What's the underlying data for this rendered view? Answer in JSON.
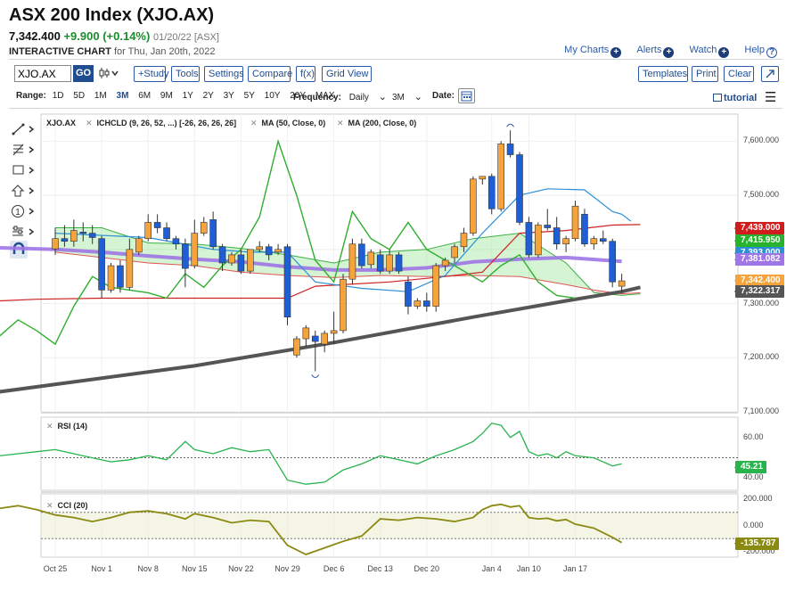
{
  "header": {
    "title": "ASX 200 Index (XJO.AX)",
    "price": "7,342.400",
    "change": "+9.900 (+0.14%)",
    "date": "01/20/22 [ASX]",
    "subtitle_bold": "INTERACTIVE CHART",
    "subtitle_rest": "for Thu, Jan 20th, 2022"
  },
  "toplinks": {
    "my_charts": "My Charts",
    "alerts": "Alerts",
    "watch": "Watch",
    "help": "Help"
  },
  "toolbar": {
    "symbol_value": "XJO.AX",
    "go": "GO",
    "study": "+Study",
    "tools": "Tools",
    "settings": "Settings",
    "compare": "Compare",
    "fx": "f(x)",
    "grid_view": "Grid View",
    "templates": "Templates",
    "print": "Print",
    "clear": "Clear"
  },
  "rangebar": {
    "label": "Range:",
    "ranges": [
      "1D",
      "5D",
      "1M",
      "3M",
      "6M",
      "9M",
      "1Y",
      "2Y",
      "3Y",
      "5Y",
      "10Y",
      "20Y",
      "MAX"
    ],
    "selected": "3M",
    "frequency_label": "Frequency:",
    "frequency_value": "Daily",
    "interval_value": "3M",
    "date_label": "Date:",
    "tutorial": "tutorial"
  },
  "legend": {
    "symbol": "XJO.AX",
    "ichimoku": "ICHCLD (9, 26, 52, ...) [-26, 26, 26, 26]",
    "ma50": "MA (50, Close, 0)",
    "ma200": "MA (200, Close, 0)"
  },
  "colors": {
    "up": "#f5a33a",
    "down": "#1f5fd6",
    "ma50": "#9f76e6",
    "ma200": "#555555",
    "tenkan": "#2b8fd8",
    "kijun": "#cc2222",
    "chikou": "#2eae2e",
    "rsi": "#27b34d",
    "cci": "#8a8a12",
    "red_tag": "#d01c1c",
    "green_tag": "#27b32e"
  },
  "chart_data": [
    {
      "type": "candlestick",
      "ylim": [
        7100,
        7650
      ],
      "yticks": [
        7100,
        7200,
        7300,
        7400,
        7500,
        7600
      ],
      "ytick_labels": [
        "7,100.000",
        "7,200.000",
        "7,300.000",
        "7,400.000",
        "7,500.000",
        "7,600.000"
      ],
      "x_labels": [
        "Oct 25",
        "Nov 1",
        "Nov 8",
        "Nov 15",
        "Nov 22",
        "Nov 29",
        "Dec 6",
        "Dec 13",
        "Dec 20",
        "Jan 4",
        "Jan 10",
        "Jan 17"
      ],
      "x_label_index": [
        0,
        5,
        10,
        15,
        20,
        25,
        30,
        35,
        40,
        47,
        51,
        56
      ],
      "ohlc": [
        [
          7401,
          7440,
          7390,
          7420
        ],
        [
          7420,
          7445,
          7405,
          7415
        ],
        [
          7415,
          7455,
          7405,
          7435
        ],
        [
          7432,
          7450,
          7415,
          7430
        ],
        [
          7430,
          7445,
          7410,
          7422
        ],
        [
          7420,
          7425,
          7310,
          7325
        ],
        [
          7325,
          7375,
          7320,
          7370
        ],
        [
          7370,
          7380,
          7320,
          7330
        ],
        [
          7330,
          7420,
          7325,
          7400
        ],
        [
          7395,
          7425,
          7390,
          7420
        ],
        [
          7420,
          7465,
          7415,
          7450
        ],
        [
          7450,
          7465,
          7430,
          7440
        ],
        [
          7440,
          7450,
          7415,
          7420
        ],
        [
          7420,
          7425,
          7400,
          7410
        ],
        [
          7410,
          7420,
          7330,
          7365
        ],
        [
          7370,
          7455,
          7365,
          7430
        ],
        [
          7430,
          7460,
          7425,
          7450
        ],
        [
          7455,
          7470,
          7400,
          7405
        ],
        [
          7405,
          7410,
          7360,
          7375
        ],
        [
          7375,
          7395,
          7370,
          7390
        ],
        [
          7390,
          7400,
          7355,
          7360
        ],
        [
          7360,
          7400,
          7355,
          7400
        ],
        [
          7400,
          7415,
          7395,
          7405
        ],
        [
          7405,
          7410,
          7380,
          7390
        ],
        [
          7395,
          7410,
          7390,
          7400
        ],
        [
          7405,
          7410,
          7260,
          7275
        ],
        [
          7205,
          7240,
          7200,
          7235
        ],
        [
          7235,
          7260,
          7220,
          7255
        ],
        [
          7240,
          7250,
          7175,
          7230
        ],
        [
          7225,
          7250,
          7210,
          7245
        ],
        [
          7245,
          7285,
          7225,
          7250
        ],
        [
          7250,
          7355,
          7245,
          7345
        ],
        [
          7345,
          7420,
          7335,
          7410
        ],
        [
          7410,
          7420,
          7365,
          7370
        ],
        [
          7372,
          7400,
          7365,
          7395
        ],
        [
          7390,
          7400,
          7355,
          7360
        ],
        [
          7360,
          7400,
          7355,
          7390
        ],
        [
          7390,
          7395,
          7355,
          7360
        ],
        [
          7340,
          7350,
          7280,
          7295
        ],
        [
          7295,
          7310,
          7290,
          7305
        ],
        [
          7305,
          7320,
          7285,
          7295
        ],
        [
          7295,
          7375,
          7285,
          7370
        ],
        [
          7370,
          7385,
          7360,
          7380
        ],
        [
          7385,
          7410,
          7375,
          7405
        ],
        [
          7405,
          7440,
          7395,
          7430
        ],
        [
          7430,
          7535,
          7425,
          7530
        ],
        [
          7530,
          7535,
          7520,
          7535
        ],
        [
          7535,
          7540,
          7465,
          7475
        ],
        [
          7475,
          7600,
          7470,
          7595
        ],
        [
          7595,
          7620,
          7570,
          7575
        ],
        [
          7575,
          7580,
          7445,
          7450
        ],
        [
          7450,
          7460,
          7385,
          7390
        ],
        [
          7390,
          7450,
          7385,
          7445
        ],
        [
          7445,
          7475,
          7435,
          7440
        ],
        [
          7440,
          7460,
          7400,
          7410
        ],
        [
          7410,
          7425,
          7395,
          7420
        ],
        [
          7420,
          7490,
          7415,
          7480
        ],
        [
          7465,
          7475,
          7405,
          7410
        ],
        [
          7410,
          7425,
          7400,
          7420
        ],
        [
          7420,
          7435,
          7410,
          7415
        ],
        [
          7415,
          7420,
          7330,
          7340
        ],
        [
          7332,
          7355,
          7320,
          7342
        ]
      ],
      "ma50": [
        [
          -6,
          7403
        ],
        [
          0,
          7400
        ],
        [
          5,
          7395
        ],
        [
          10,
          7388
        ],
        [
          15,
          7382
        ],
        [
          20,
          7377
        ],
        [
          25,
          7368
        ],
        [
          30,
          7362
        ],
        [
          35,
          7362
        ],
        [
          40,
          7366
        ],
        [
          45,
          7377
        ],
        [
          50,
          7382
        ],
        [
          55,
          7385
        ],
        [
          61,
          7378
        ]
      ],
      "ma200": [
        [
          -6,
          7137
        ],
        [
          15,
          7185
        ],
        [
          30,
          7228
        ],
        [
          45,
          7275
        ],
        [
          55,
          7305
        ],
        [
          61,
          7322
        ],
        [
          63,
          7330
        ]
      ],
      "tenkan": [
        [
          0,
          7430
        ],
        [
          10,
          7422
        ],
        [
          17,
          7400
        ],
        [
          21,
          7395
        ],
        [
          25,
          7395
        ],
        [
          28,
          7340
        ],
        [
          33,
          7328
        ],
        [
          38,
          7322
        ],
        [
          42,
          7352
        ],
        [
          46,
          7430
        ],
        [
          50,
          7500
        ],
        [
          53,
          7512
        ],
        [
          57,
          7510
        ],
        [
          60,
          7470
        ],
        [
          61,
          7465
        ],
        [
          62,
          7452
        ]
      ],
      "kijun": [
        [
          -6,
          7305
        ],
        [
          -2,
          7308
        ],
        [
          5,
          7310
        ],
        [
          15,
          7310
        ],
        [
          25,
          7310
        ],
        [
          28,
          7332
        ],
        [
          36,
          7340
        ],
        [
          42,
          7350
        ],
        [
          46,
          7358
        ],
        [
          50,
          7430
        ],
        [
          55,
          7435
        ],
        [
          60,
          7445
        ],
        [
          63,
          7446
        ]
      ],
      "cloud_a": [
        [
          0,
          7440
        ],
        [
          5,
          7440
        ],
        [
          10,
          7412
        ],
        [
          15,
          7410
        ],
        [
          20,
          7402
        ],
        [
          25,
          7390
        ],
        [
          30,
          7375
        ],
        [
          35,
          7395
        ],
        [
          40,
          7400
        ],
        [
          45,
          7420
        ],
        [
          50,
          7430
        ],
        [
          55,
          7375
        ],
        [
          58,
          7320
        ],
        [
          61,
          7315
        ],
        [
          63,
          7318
        ]
      ],
      "cloud_b": [
        [
          0,
          7395
        ],
        [
          5,
          7385
        ],
        [
          10,
          7375
        ],
        [
          15,
          7370
        ],
        [
          20,
          7358
        ],
        [
          25,
          7352
        ],
        [
          30,
          7348
        ],
        [
          35,
          7352
        ],
        [
          40,
          7350
        ],
        [
          45,
          7352
        ],
        [
          50,
          7350
        ],
        [
          55,
          7335
        ],
        [
          58,
          7325
        ],
        [
          61,
          7318
        ],
        [
          63,
          7320
        ]
      ],
      "chikou": [
        [
          -6,
          7240
        ],
        [
          -4,
          7270
        ],
        [
          -2,
          7250
        ],
        [
          0,
          7225
        ],
        [
          2,
          7295
        ],
        [
          4,
          7350
        ],
        [
          6,
          7330
        ],
        [
          8,
          7325
        ],
        [
          10,
          7320
        ],
        [
          12,
          7310
        ],
        [
          14,
          7355
        ],
        [
          16,
          7330
        ],
        [
          18,
          7370
        ],
        [
          20,
          7400
        ],
        [
          22,
          7460
        ],
        [
          24,
          7600
        ],
        [
          26,
          7500
        ],
        [
          28,
          7380
        ],
        [
          30,
          7340
        ],
        [
          32,
          7470
        ],
        [
          34,
          7420
        ],
        [
          36,
          7400
        ],
        [
          38,
          7450
        ],
        [
          40,
          7400
        ],
        [
          42,
          7380
        ],
        [
          44,
          7360
        ],
        [
          46,
          7340
        ],
        [
          48,
          7370
        ],
        [
          50,
          7390
        ],
        [
          52,
          7340
        ],
        [
          54,
          7315
        ],
        [
          56,
          7310
        ]
      ],
      "last_values": [
        {
          "label": "7,439.000",
          "value": 7439,
          "color": "#d01c1c"
        },
        {
          "label": "7,415.950",
          "value": 7415.95,
          "color": "#27b32e"
        },
        {
          "label": "7,393.000",
          "value": 7393,
          "color": "#2b8fd8"
        },
        {
          "label": "7,381.082",
          "value": 7381.082,
          "color": "#9f76e6"
        },
        {
          "label": "7,342.400",
          "value": 7342.4,
          "color": "#f5a33a"
        },
        {
          "label": "7,322.317",
          "value": 7322.317,
          "color": "#555555"
        }
      ]
    },
    {
      "type": "line",
      "title": "RSI (14)",
      "ylim": [
        34,
        70
      ],
      "yticks": [
        40,
        60
      ],
      "ytick_labels": [
        "40.00",
        "60.00"
      ],
      "hlines": [
        50
      ],
      "values": [
        [
          -6,
          51
        ],
        [
          -4,
          52
        ],
        [
          -2,
          53
        ],
        [
          0,
          54
        ],
        [
          2,
          52
        ],
        [
          4,
          50
        ],
        [
          6,
          48
        ],
        [
          8,
          49
        ],
        [
          10,
          51
        ],
        [
          12,
          49
        ],
        [
          14,
          58
        ],
        [
          15,
          54
        ],
        [
          17,
          52
        ],
        [
          19,
          55
        ],
        [
          21,
          53
        ],
        [
          23,
          54
        ],
        [
          25,
          39
        ],
        [
          27,
          37
        ],
        [
          29,
          38
        ],
        [
          31,
          44
        ],
        [
          33,
          47
        ],
        [
          35,
          51
        ],
        [
          37,
          49
        ],
        [
          39,
          47
        ],
        [
          41,
          51
        ],
        [
          43,
          54
        ],
        [
          45,
          58
        ],
        [
          46,
          62
        ],
        [
          47,
          67
        ],
        [
          48,
          66
        ],
        [
          49,
          60
        ],
        [
          50,
          63
        ],
        [
          51,
          53
        ],
        [
          52,
          51
        ],
        [
          53,
          52
        ],
        [
          54,
          50
        ],
        [
          55,
          53
        ],
        [
          56,
          51
        ],
        [
          58,
          50
        ],
        [
          60,
          46
        ],
        [
          61,
          47
        ]
      ],
      "last_value": {
        "label": "45.21",
        "value": 45.21,
        "color": "#27b34d"
      }
    },
    {
      "type": "line",
      "title": "CCI (20)",
      "ylim": [
        -240,
        240
      ],
      "yticks": [
        -200,
        0,
        200
      ],
      "ytick_labels": [
        "-200.000",
        "0.000",
        "200.000"
      ],
      "band": [
        -100,
        100
      ],
      "values": [
        [
          -6,
          130
        ],
        [
          -4,
          150
        ],
        [
          -2,
          120
        ],
        [
          0,
          80
        ],
        [
          2,
          60
        ],
        [
          4,
          30
        ],
        [
          6,
          60
        ],
        [
          8,
          100
        ],
        [
          10,
          110
        ],
        [
          12,
          90
        ],
        [
          14,
          50
        ],
        [
          15,
          90
        ],
        [
          17,
          60
        ],
        [
          19,
          20
        ],
        [
          21,
          40
        ],
        [
          23,
          30
        ],
        [
          25,
          -150
        ],
        [
          27,
          -220
        ],
        [
          29,
          -170
        ],
        [
          31,
          -120
        ],
        [
          33,
          -80
        ],
        [
          35,
          50
        ],
        [
          37,
          40
        ],
        [
          39,
          60
        ],
        [
          41,
          50
        ],
        [
          43,
          30
        ],
        [
          45,
          60
        ],
        [
          46,
          120
        ],
        [
          47,
          150
        ],
        [
          48,
          160
        ],
        [
          49,
          140
        ],
        [
          50,
          150
        ],
        [
          51,
          60
        ],
        [
          52,
          50
        ],
        [
          53,
          55
        ],
        [
          54,
          35
        ],
        [
          55,
          45
        ],
        [
          56,
          10
        ],
        [
          58,
          -20
        ],
        [
          60,
          -90
        ],
        [
          61,
          -130
        ]
      ],
      "last_value": {
        "label": "-135.787",
        "value": -135.787,
        "color": "#8a8a12"
      }
    }
  ]
}
